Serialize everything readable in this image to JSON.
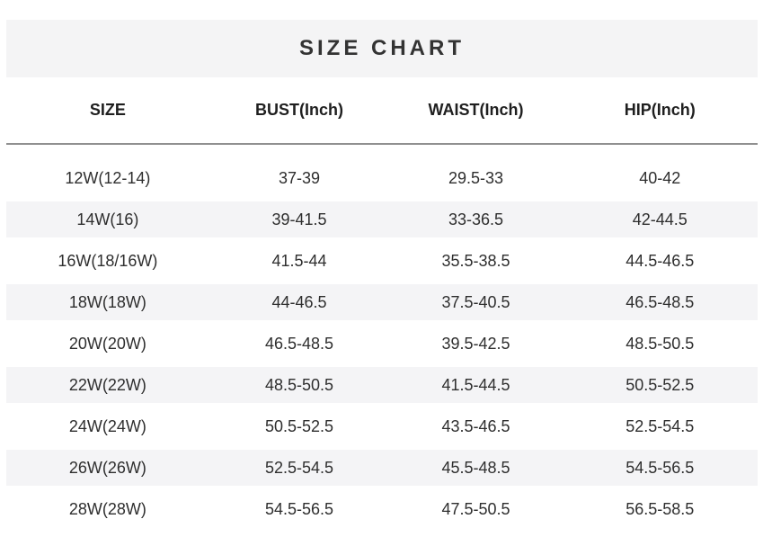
{
  "title": "SIZE CHART",
  "colors": {
    "page_bg": "#ffffff",
    "band_bg": "#f4f4f5",
    "stripe_bg": "#f4f4f6",
    "title_text": "#333333",
    "header_text": "#1f1f1f",
    "cell_text": "#2e2e2e",
    "divider": "#909090"
  },
  "chart_data": {
    "type": "table",
    "title": "SIZE CHART",
    "columns": [
      "SIZE",
      "BUST(Inch)",
      "WAIST(Inch)",
      "HIP(Inch)"
    ],
    "rows": [
      [
        "12W(12-14)",
        "37-39",
        "29.5-33",
        "40-42"
      ],
      [
        "14W(16)",
        "39-41.5",
        "33-36.5",
        "42-44.5"
      ],
      [
        "16W(18/16W)",
        "41.5-44",
        "35.5-38.5",
        "44.5-46.5"
      ],
      [
        "18W(18W)",
        "44-46.5",
        "37.5-40.5",
        "46.5-48.5"
      ],
      [
        "20W(20W)",
        "46.5-48.5",
        "39.5-42.5",
        "48.5-50.5"
      ],
      [
        "22W(22W)",
        "48.5-50.5",
        "41.5-44.5",
        "50.5-52.5"
      ],
      [
        "24W(24W)",
        "50.5-52.5",
        "43.5-46.5",
        "52.5-54.5"
      ],
      [
        "26W(26W)",
        "52.5-54.5",
        "45.5-48.5",
        "54.5-56.5"
      ],
      [
        "28W(28W)",
        "54.5-56.5",
        "47.5-50.5",
        "56.5-58.5"
      ]
    ],
    "layout_hints": {
      "striping": "alternate rows shaded starting with second data row",
      "alignment": "all cells center-aligned",
      "units": "inches"
    }
  }
}
